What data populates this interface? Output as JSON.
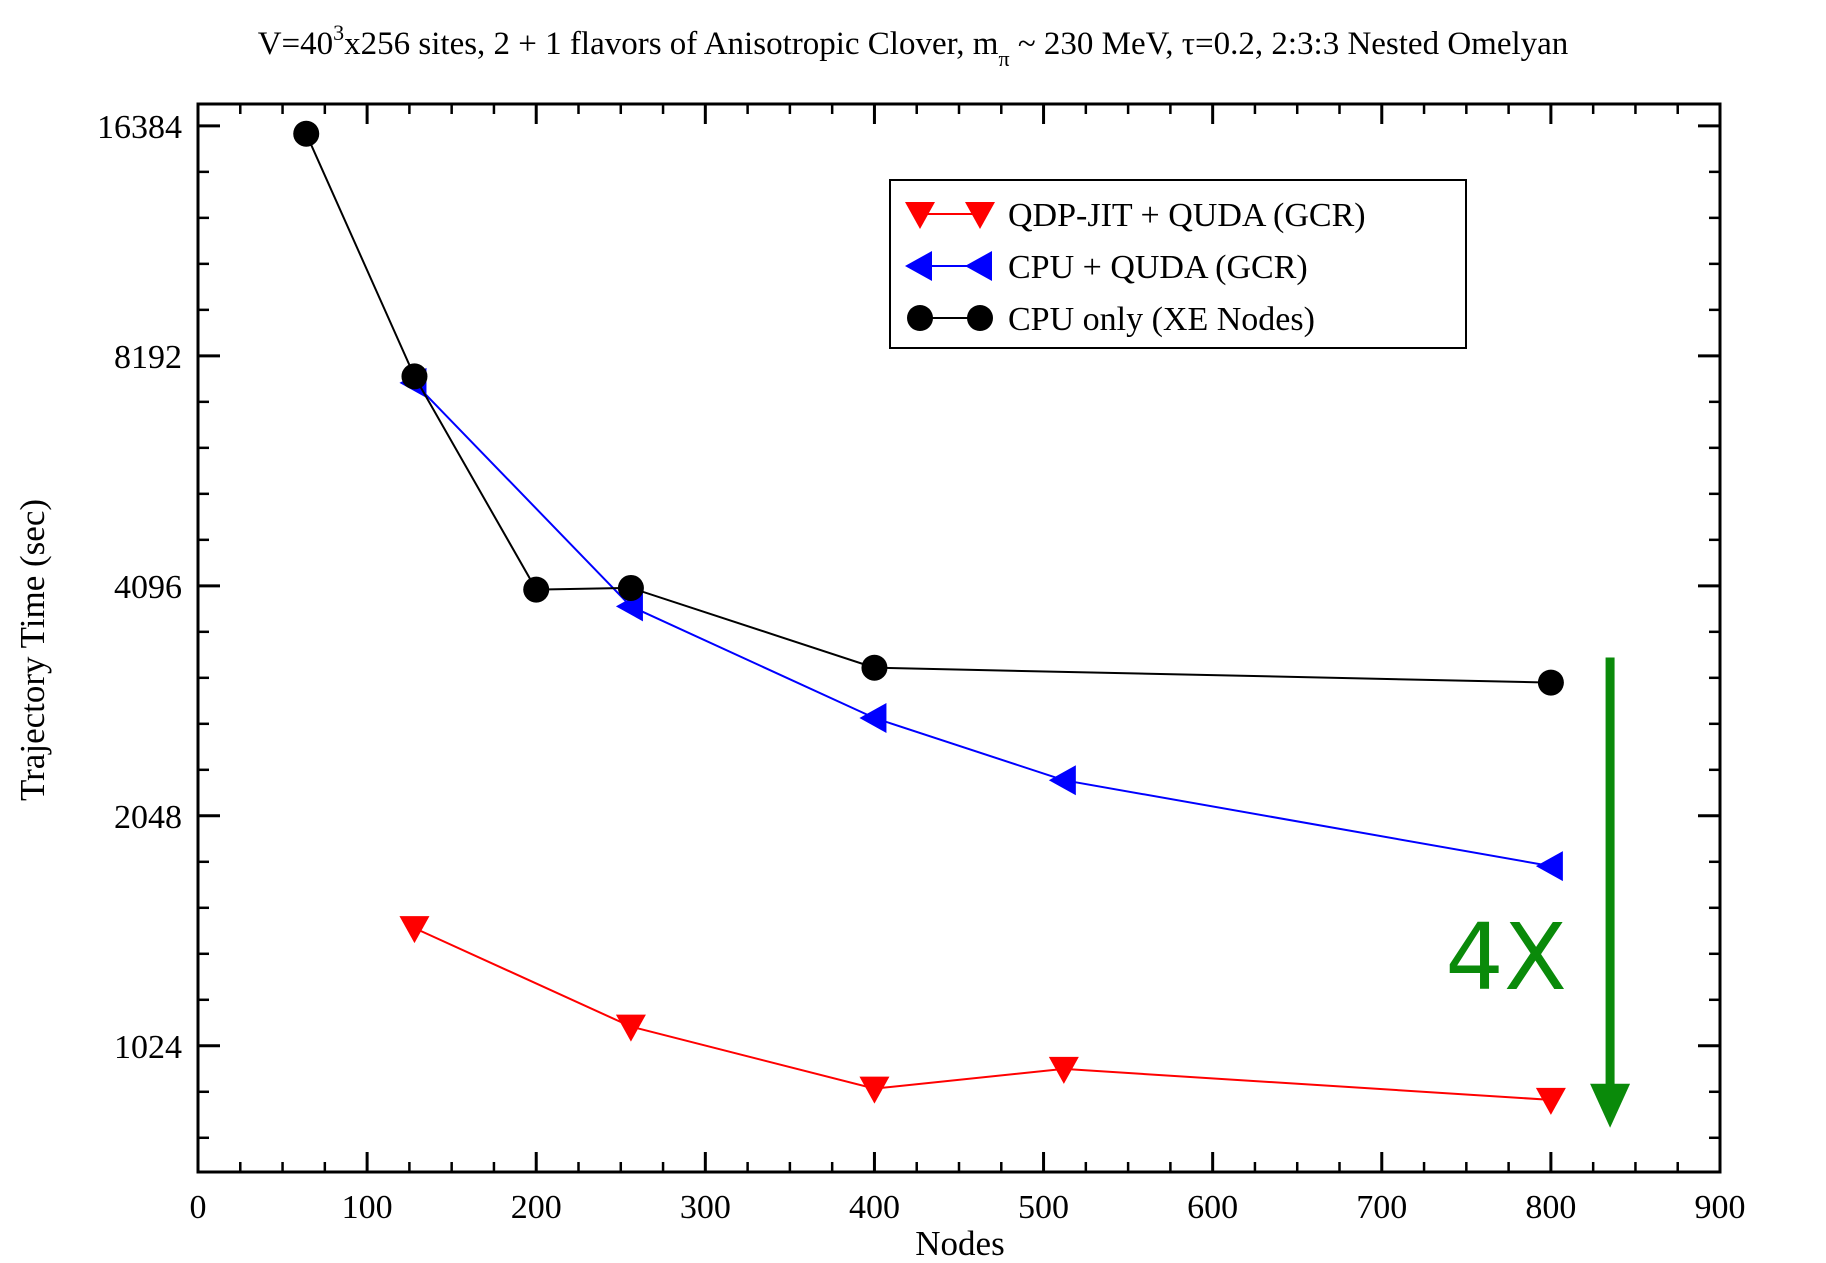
{
  "chart_data": {
    "type": "line",
    "title": {
      "prefix": "V=40",
      "sup": "3",
      "middle": "x256 sites, 2 + 1 flavors of Anisotropic Clover, m",
      "sub": "π",
      "suffix": " ~ 230 MeV, τ=0.2, 2:3:3 Nested Omelyan"
    },
    "xlabel": "Nodes",
    "ylabel": "Trajectory Time (sec)",
    "xlim": [
      0,
      900
    ],
    "ylim": [
      700,
      17500
    ],
    "yscale": "log2",
    "x_ticks": [
      0,
      100,
      200,
      300,
      400,
      500,
      600,
      700,
      800,
      900
    ],
    "y_ticks": [
      1024,
      2048,
      4096,
      8192,
      16384
    ],
    "grid": false,
    "legend_position": "top-right",
    "series": [
      {
        "name": "QDP-JIT + QUDA (GCR)",
        "color": "#ff0000",
        "marker": "triangle-down",
        "points": [
          [
            128,
            1460
          ],
          [
            256,
            1085
          ],
          [
            400,
            900
          ],
          [
            512,
            955
          ],
          [
            800,
            870
          ]
        ]
      },
      {
        "name": "CPU + QUDA (GCR)",
        "color": "#0000ff",
        "marker": "triangle-left",
        "points": [
          [
            128,
            7550
          ],
          [
            256,
            3850
          ],
          [
            400,
            2750
          ],
          [
            512,
            2280
          ],
          [
            800,
            1760
          ]
        ]
      },
      {
        "name": "CPU only (XE Nodes)",
        "color": "#000000",
        "marker": "circle",
        "points": [
          [
            64,
            16000
          ],
          [
            128,
            7700
          ],
          [
            200,
            4050
          ],
          [
            256,
            4070
          ],
          [
            400,
            3200
          ],
          [
            800,
            3060
          ]
        ]
      }
    ],
    "annotation": {
      "text": "4X",
      "color": "#0a8a0a",
      "arrow_from": 3300,
      "arrow_to": 800,
      "arrow_x": 835
    }
  }
}
